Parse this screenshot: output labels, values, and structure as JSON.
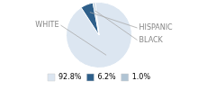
{
  "chart_data": {
    "type": "pie",
    "categories": [
      "WHITE",
      "HISPANIC",
      "BLACK"
    ],
    "values": [
      92.8,
      6.2,
      1.0
    ],
    "value_labels": [
      "92.8%",
      "6.2%",
      "1.0%"
    ],
    "colors": [
      "#dce6f1",
      "#2e5f8a",
      "#b0c4d4"
    ],
    "legend": "bottom"
  }
}
